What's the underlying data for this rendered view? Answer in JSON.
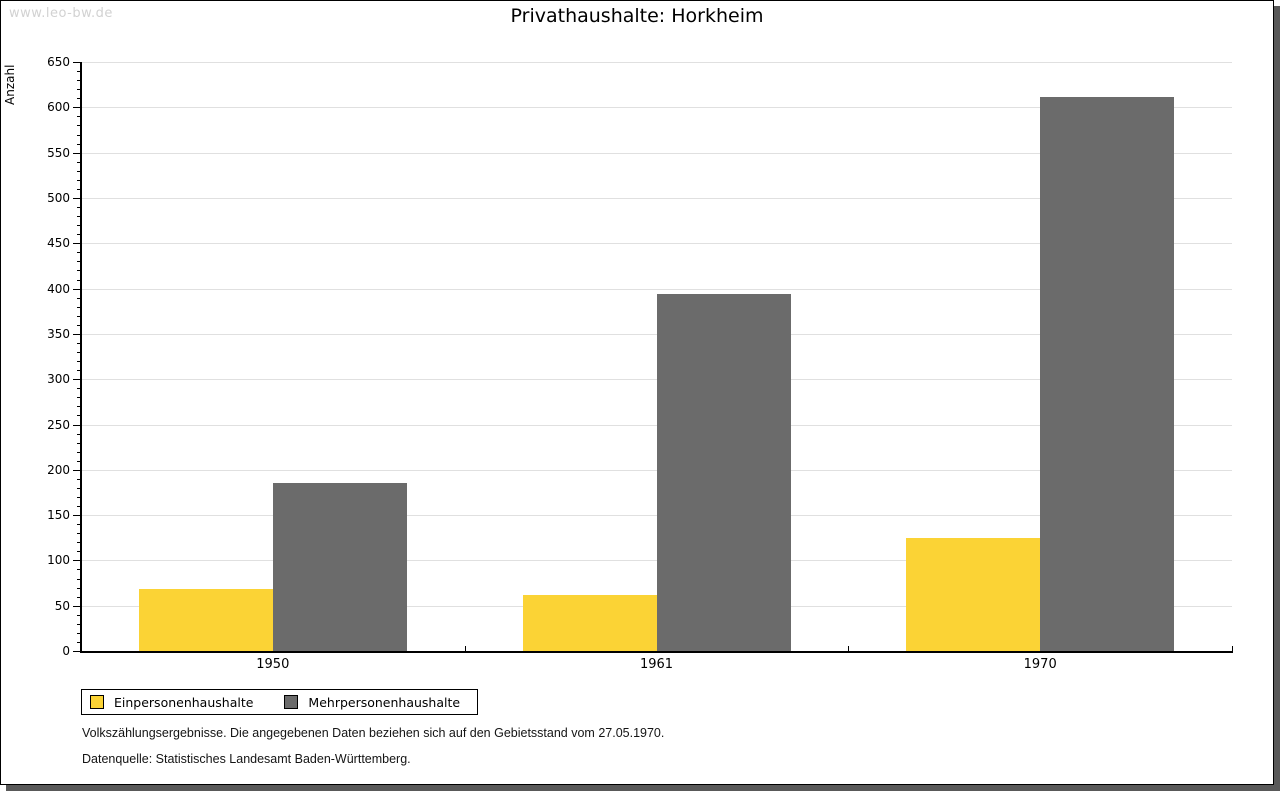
{
  "watermark": "www.leo-bw.de",
  "header": {
    "title": "Privathaushalte: Horkheim"
  },
  "chart_data": {
    "type": "bar",
    "title": "Privathaushalte: Horkheim",
    "categories": [
      "1950",
      "1961",
      "1970"
    ],
    "series": [
      {
        "name": "Einpersonenhaushalte",
        "color": "#FBD335",
        "values": [
          69,
          62,
          125
        ]
      },
      {
        "name": "Mehrpersonenhaushalte",
        "color": "#6B6B6B",
        "values": [
          185,
          394,
          611
        ]
      }
    ],
    "xlabel": "",
    "ylabel": "Anzahl",
    "ylim": [
      0,
      650
    ],
    "ytick_step": 50,
    "yminor_step": 10,
    "grid": true,
    "gridline_color": "#E0E0E0",
    "axis_color": "#000000",
    "legend_position": "bottom-left"
  },
  "footer": {
    "note": "Volkszählungsergebnisse. Die angegebenen Daten beziehen sich auf den Gebietsstand vom 27.05.1970.",
    "source": "Datenquelle: Statistisches Landesamt Baden-Württemberg."
  }
}
